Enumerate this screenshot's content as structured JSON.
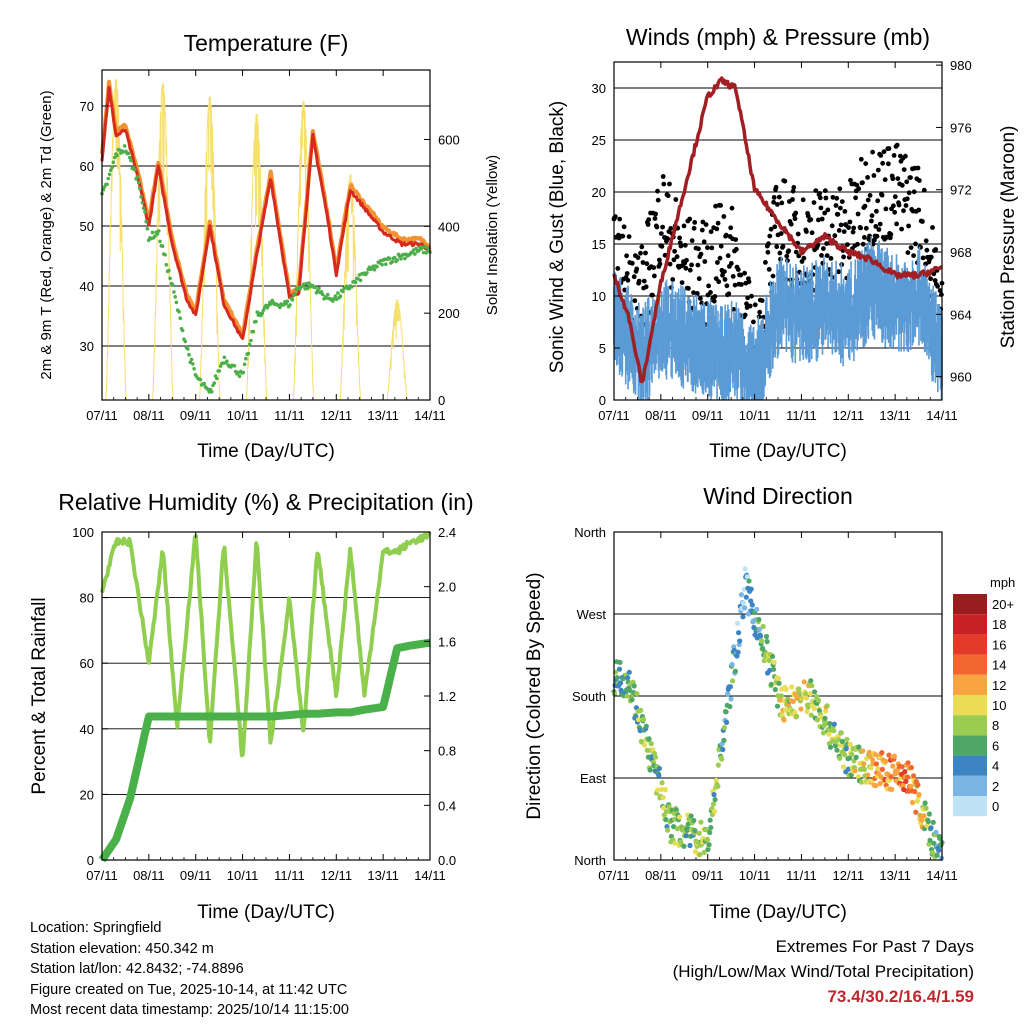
{
  "xaxis": {
    "label": "Time (Day/UTC)",
    "ticks": [
      "07/11",
      "08/11",
      "09/11",
      "10/11",
      "11/11",
      "12/11",
      "13/11",
      "14/11"
    ]
  },
  "temperature": {
    "title": "Temperature (F)",
    "ylabel_left": "2m & 9m T (Red, Orange) & 2m Td (Green)",
    "ylabel_right": "Solar Insolation (Yellow)",
    "left_ticks": [
      "30",
      "40",
      "50",
      "60",
      "70"
    ],
    "right_ticks": [
      "0",
      "200",
      "400",
      "600"
    ]
  },
  "winds": {
    "title": "Winds (mph) & Pressure (mb)",
    "ylabel_left": "Sonic Wind & Gust (Blue, Black)",
    "ylabel_right": "Station Pressure (Maroon)",
    "left_ticks": [
      "0",
      "5",
      "10",
      "15",
      "20",
      "25",
      "30"
    ],
    "right_ticks": [
      "960",
      "964",
      "968",
      "972",
      "976",
      "980"
    ]
  },
  "humidity": {
    "title": "Relative Humidity (%) & Precipitation (in)",
    "ylabel_left": "Percent & Total Rainfall",
    "left_ticks": [
      "0",
      "20",
      "40",
      "60",
      "80",
      "100"
    ],
    "right_ticks": [
      "0.0",
      "0.4",
      "0.8",
      "1.2",
      "1.6",
      "2.0",
      "2.4"
    ]
  },
  "direction": {
    "title": "Wind Direction",
    "ylabel_left": "Direction (Colored By Speed)",
    "dir_ticks": [
      "North",
      "East",
      "South",
      "West",
      "North"
    ],
    "legend_title": "mph",
    "legend_labels": [
      "20+",
      "18",
      "16",
      "14",
      "12",
      "10",
      "8",
      "6",
      "4",
      "2",
      "0"
    ],
    "legend_colors": [
      "#9b1c1f",
      "#c82125",
      "#e23b2a",
      "#f2672f",
      "#f8a440",
      "#e9dd55",
      "#9ccc4f",
      "#4fa767",
      "#3c84c2",
      "#7ab6e4",
      "#bfe2f5"
    ]
  },
  "info": {
    "location": "Location: Springfield",
    "elevation": "Station elevation: 450.342 m",
    "latlon": "Station lat/lon: 42.8432; -74.8896",
    "created": "Figure created on Tue, 2025-10-14, at 11:42 UTC",
    "recent": "Most recent data timestamp: 2025/10/14 11:15:00"
  },
  "extremes": {
    "line1": "Extremes For Past 7 Days",
    "line2": "(High/Low/Max Wind/Total Precipitation)",
    "values": "73.4/30.2/16.4/1.59"
  },
  "colors": {
    "temp2m": "#d62a1f",
    "temp9m": "#f39230",
    "dewpoint": "#4caf4a",
    "solar": "#f7df6e",
    "wind": "#5b9bd5",
    "gust": "#000000",
    "pressure": "#a11f24",
    "rh": "#8fce4e",
    "precip": "#4ab04a"
  },
  "chart_data": [
    {
      "type": "line",
      "title": "Temperature (F)",
      "x": [
        0,
        0.15,
        0.3,
        0.5,
        0.8,
        1.0,
        1.2,
        1.5,
        1.8,
        2.0,
        2.3,
        2.6,
        3.0,
        3.3,
        3.6,
        4.0,
        4.2,
        4.5,
        4.8,
        5.0,
        5.3,
        5.6,
        6.0,
        6.4,
        6.8,
        7.0
      ],
      "series": [
        {
          "name": "2m T",
          "values": [
            61,
            73,
            65,
            66,
            57,
            50,
            60,
            47,
            38,
            35,
            50,
            37,
            31,
            45,
            58,
            38,
            39,
            65,
            52,
            42,
            56,
            53,
            49,
            47,
            47,
            46
          ]
        },
        {
          "name": "2m Td",
          "values": [
            55,
            58,
            62,
            63,
            57,
            48,
            49,
            40,
            30,
            25,
            22,
            28,
            25,
            35,
            37,
            37,
            40,
            40,
            38,
            38,
            40,
            42,
            44,
            45,
            46,
            46
          ]
        }
      ],
      "solar_days": [
        0.3,
        1.3,
        2.3,
        3.3,
        4.3,
        5.3,
        6.3
      ],
      "solar_peaks": [
        740,
        730,
        700,
        660,
        690,
        520,
        230
      ],
      "ylim_left": [
        21,
        76
      ],
      "ylim_right": [
        0,
        760
      ]
    },
    {
      "type": "line",
      "title": "Winds (mph) & Pressure (mb)",
      "x": [
        0,
        0.3,
        0.6,
        1.0,
        1.5,
        2.0,
        2.3,
        2.6,
        3.0,
        3.5,
        4.0,
        4.5,
        5.0,
        5.5,
        6.0,
        6.5,
        7.0
      ],
      "series": [
        {
          "name": "Wind",
          "values": [
            8,
            6,
            4,
            7,
            6,
            5,
            4,
            5,
            2,
            9,
            8,
            9,
            8,
            11,
            9,
            10,
            4
          ]
        },
        {
          "name": "Gust",
          "values": [
            13,
            12,
            10,
            18,
            13,
            12,
            15,
            13,
            4,
            17,
            15,
            16,
            16,
            20,
            20,
            18,
            8
          ]
        },
        {
          "name": "Pressure",
          "values": [
            966.5,
            964,
            959.5,
            966,
            972,
            978,
            979,
            978.5,
            972,
            970,
            968,
            969,
            968,
            967.5,
            966.5,
            966.5,
            967
          ]
        }
      ],
      "ylim_left": [
        0,
        32.5
      ],
      "ylim_right": [
        958.5,
        980.2
      ]
    },
    {
      "type": "line",
      "title": "Relative Humidity (%) & Precipitation (in)",
      "x": [
        0,
        0.3,
        0.6,
        1.0,
        1.3,
        1.6,
        2.0,
        2.3,
        2.6,
        3.0,
        3.3,
        3.6,
        4.0,
        4.3,
        4.6,
        5.0,
        5.3,
        5.6,
        6.0,
        6.3,
        6.6,
        7.0
      ],
      "series": [
        {
          "name": "RH",
          "values": [
            82,
            97,
            97,
            60,
            95,
            40,
            100,
            35,
            97,
            30,
            98,
            35,
            80,
            38,
            95,
            50,
            95,
            50,
            94,
            94,
            97,
            99
          ]
        },
        {
          "name": "Precipitation",
          "values": [
            0.0,
            0.15,
            0.45,
            1.05,
            1.05,
            1.05,
            1.05,
            1.05,
            1.05,
            1.05,
            1.05,
            1.05,
            1.06,
            1.07,
            1.07,
            1.08,
            1.08,
            1.1,
            1.12,
            1.55,
            1.57,
            1.59
          ]
        }
      ],
      "ylim_left": [
        0,
        100
      ],
      "ylim_right": [
        0,
        2.4
      ]
    },
    {
      "type": "scatter",
      "title": "Wind Direction",
      "x_days": [
        0.3,
        1.2,
        2.0,
        2.8,
        3.6,
        4.2,
        5.0,
        5.6,
        6.3,
        6.9
      ],
      "direction_deg": [
        200,
        40,
        20,
        300,
        170,
        180,
        110,
        100,
        90,
        10
      ],
      "speed_mph": [
        6,
        7,
        8,
        2,
        10,
        9,
        7,
        12,
        14,
        4
      ]
    }
  ]
}
